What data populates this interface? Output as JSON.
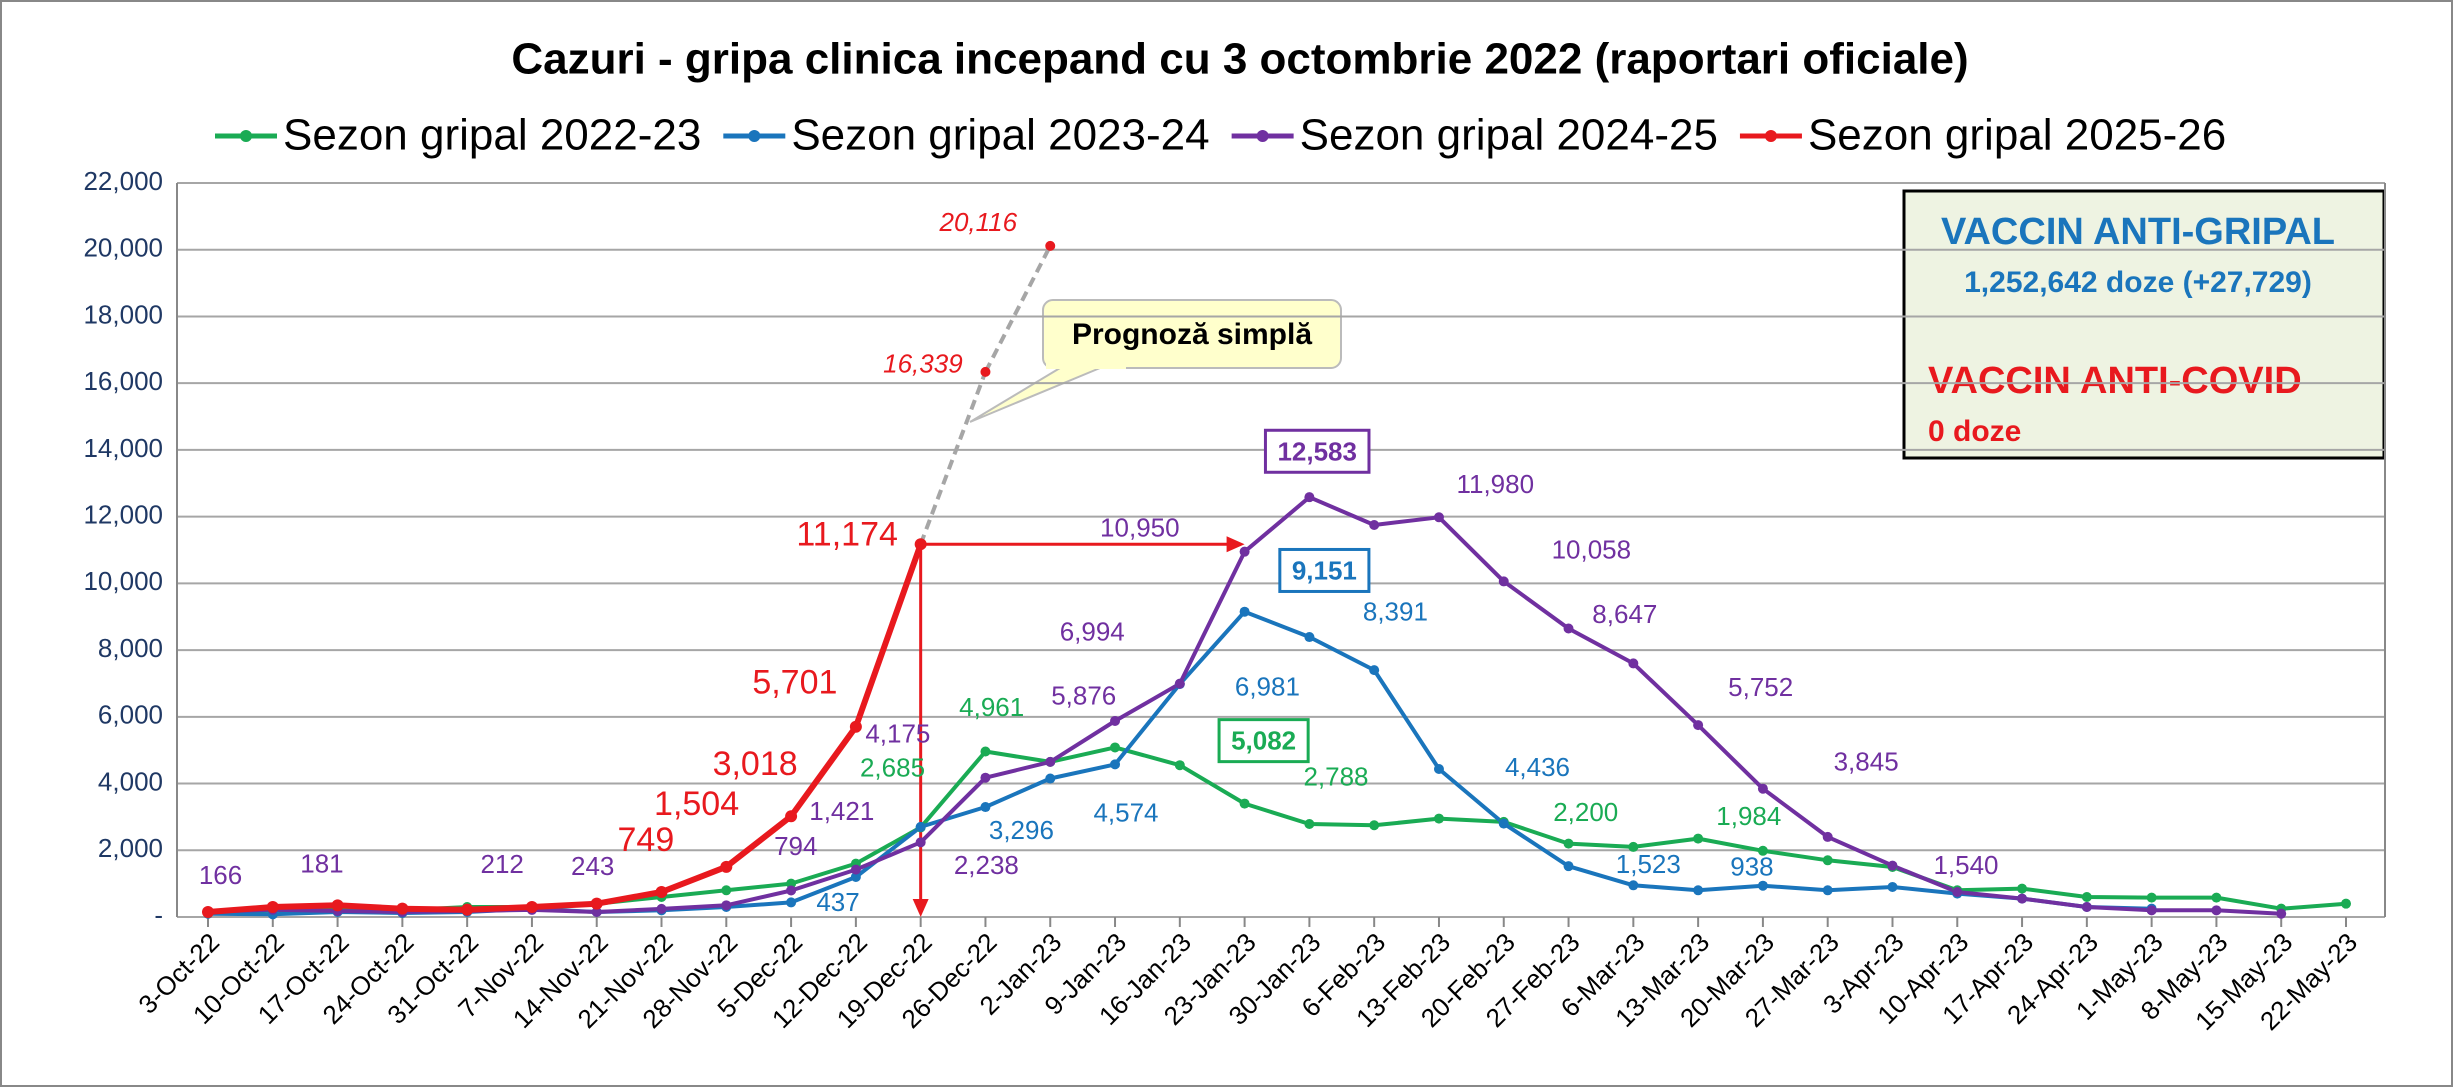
{
  "chart_data": {
    "type": "line",
    "title": "Cazuri - gripa clinica incepand cu 3 octombrie 2022 (raportari oficiale)",
    "categories": [
      "3-Oct-22",
      "10-Oct-22",
      "17-Oct-22",
      "24-Oct-22",
      "31-Oct-22",
      "7-Nov-22",
      "14-Nov-22",
      "21-Nov-22",
      "28-Nov-22",
      "5-Dec-22",
      "12-Dec-22",
      "19-Dec-22",
      "26-Dec-22",
      "2-Jan-23",
      "9-Jan-23",
      "16-Jan-23",
      "23-Jan-23",
      "30-Jan-23",
      "6-Feb-23",
      "13-Feb-23",
      "20-Feb-23",
      "27-Feb-23",
      "6-Mar-23",
      "13-Mar-23",
      "20-Mar-23",
      "27-Mar-23",
      "3-Apr-23",
      "10-Apr-23",
      "17-Apr-23",
      "24-Apr-23",
      "1-May-23",
      "8-May-23",
      "15-May-23",
      "22-May-23"
    ],
    "ylim": [
      0,
      22000
    ],
    "yticks": [
      {
        "value": 0,
        "label": "-"
      },
      {
        "value": 2000,
        "label": "2,000"
      },
      {
        "value": 4000,
        "label": "4,000"
      },
      {
        "value": 6000,
        "label": "6,000"
      },
      {
        "value": 8000,
        "label": "8,000"
      },
      {
        "value": 10000,
        "label": "10,000"
      },
      {
        "value": 12000,
        "label": "12,000"
      },
      {
        "value": 14000,
        "label": "14,000"
      },
      {
        "value": 16000,
        "label": "16,000"
      },
      {
        "value": 18000,
        "label": "18,000"
      },
      {
        "value": 20000,
        "label": "20,000"
      },
      {
        "value": 22000,
        "label": "22,000"
      }
    ],
    "grid": true,
    "legend": "top",
    "series": [
      {
        "name": "Sezon gripal 2022-23",
        "color": "#1aab54",
        "values": [
          150,
          200,
          250,
          200,
          300,
          300,
          400,
          600,
          800,
          1000,
          1600,
          2685,
          4961,
          4650,
          5082,
          4550,
          3400,
          2788,
          2750,
          2950,
          2850,
          2200,
          2100,
          2350,
          1984,
          1700,
          1500,
          800,
          850,
          600,
          580,
          580,
          250,
          400
        ],
        "value_labels": [
          null,
          null,
          null,
          null,
          null,
          null,
          null,
          null,
          null,
          null,
          null,
          "2,685",
          "4,961",
          null,
          "5,082",
          null,
          null,
          "2,788",
          null,
          null,
          null,
          "2,200",
          null,
          null,
          "1,984",
          null,
          null,
          null,
          null,
          null,
          null,
          null,
          null,
          null
        ]
      },
      {
        "name": "Sezon gripal 2023-24",
        "color": "#1a75bc",
        "values": [
          100,
          80,
          150,
          120,
          150,
          250,
          150,
          200,
          300,
          437,
          1200,
          2700,
          3296,
          4150,
          4574,
          6981,
          9151,
          8391,
          7400,
          4436,
          2800,
          1523,
          950,
          800,
          938,
          800,
          900,
          700,
          550,
          300,
          250,
          null,
          null,
          null
        ],
        "value_labels": [
          null,
          null,
          null,
          null,
          null,
          null,
          null,
          null,
          null,
          "437",
          null,
          null,
          "3,296",
          null,
          "4,574",
          "6,981",
          "9,151",
          "8,391",
          null,
          "4,436",
          null,
          "1,523",
          null,
          null,
          "938",
          null,
          null,
          null,
          null,
          null,
          null,
          null,
          null,
          null
        ]
      },
      {
        "name": "Sezon gripal 2024-25",
        "color": "#7030a0",
        "values": [
          166,
          220,
          181,
          150,
          180,
          212,
          150,
          243,
          350,
          794,
          1421,
          2238,
          4175,
          4650,
          5876,
          6994,
          10950,
          12583,
          11750,
          11980,
          10058,
          8647,
          7600,
          5752,
          3845,
          2400,
          1540,
          750,
          550,
          300,
          200,
          200,
          100,
          null
        ],
        "value_labels": [
          "166",
          null,
          "181",
          null,
          null,
          "212",
          null,
          "243",
          null,
          "794",
          "1,421",
          "2,238",
          "4,175",
          null,
          "5,876",
          "6,994",
          "10,950",
          "12,583",
          null,
          "11,980",
          "10,058",
          "8,647",
          null,
          "5,752",
          "3,845",
          null,
          "1,540",
          null,
          null,
          null,
          null,
          null,
          null,
          null
        ]
      },
      {
        "name": "Sezon gripal 2025-26",
        "color": "#e8191e",
        "values": [
          150,
          300,
          350,
          250,
          220,
          300,
          400,
          749,
          1504,
          3018,
          5701,
          11174,
          null,
          null,
          null,
          null,
          null,
          null,
          null,
          null,
          null,
          null,
          null,
          null,
          null,
          null,
          null,
          null,
          null,
          null,
          null,
          null,
          null,
          null
        ],
        "value_labels": [
          null,
          null,
          null,
          null,
          null,
          null,
          null,
          "749",
          "1,504",
          "3,018",
          "5,701",
          "11,174",
          null,
          null,
          null,
          null,
          null,
          null,
          null,
          null,
          null,
          null,
          null,
          null,
          null,
          null,
          null,
          null,
          null,
          null,
          null,
          null,
          null,
          null
        ]
      }
    ],
    "forecast": {
      "color": "#e8191e",
      "values": [
        null,
        null,
        null,
        null,
        null,
        null,
        null,
        null,
        null,
        null,
        null,
        null,
        16339,
        20116,
        null,
        null,
        null,
        null,
        null,
        null,
        null,
        null,
        null,
        null,
        null,
        null,
        null,
        null,
        null,
        null,
        null,
        null,
        null,
        null
      ],
      "value_labels": [
        null,
        null,
        null,
        null,
        null,
        null,
        null,
        null,
        null,
        null,
        null,
        null,
        "16,339",
        "20,116",
        null,
        null,
        null,
        null,
        null,
        null,
        null,
        null,
        null,
        null,
        null,
        null,
        null,
        null,
        null,
        null,
        null,
        null,
        null,
        null
      ]
    },
    "annotations": {
      "callout": "Prognoză simplă",
      "flu_vaccine_title": "VACCIN ANTI-GRIPAL",
      "flu_vaccine_doses": "1,252,642 doze (+27,729)",
      "covid_vaccine_title": "VACCIN ANTI-COVID",
      "covid_vaccine_doses": "0 doze"
    }
  }
}
